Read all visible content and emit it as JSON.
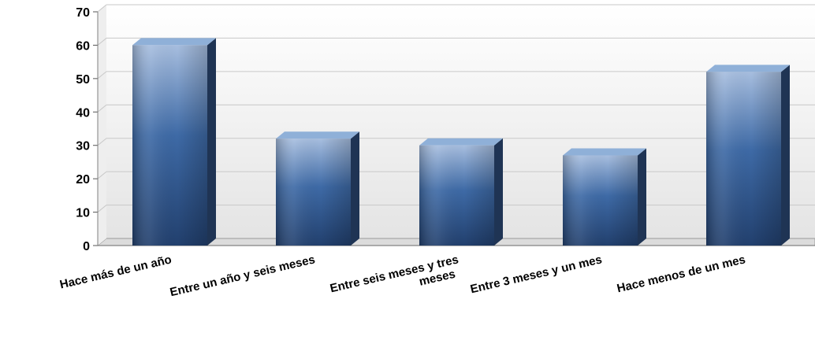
{
  "chart_data": {
    "type": "bar",
    "style": "3d-column",
    "title": "",
    "xlabel": "",
    "ylabel": "",
    "categories": [
      [
        "Hace más de un año"
      ],
      [
        "Entre un año y seis meses"
      ],
      [
        "Entre seis meses y tres",
        "meses"
      ],
      [
        "Entre 3 meses y un mes"
      ],
      [
        "Hace menos de un mes"
      ]
    ],
    "values": [
      60,
      32,
      30,
      27,
      52
    ],
    "ylim": [
      0,
      70
    ],
    "yticks": [
      0,
      10,
      20,
      30,
      40,
      50,
      60,
      70
    ],
    "grid": true,
    "legend": "none",
    "colors": {
      "bar_top": "#8fb0d8",
      "bar_front_light": "#a7bedf",
      "bar_front_mid": "#3e6aa6",
      "bar_front_dark": "#22406e",
      "bar_side": "#1f3454",
      "gridline": "#c8c8c8",
      "axis": "#808080",
      "plot_bg_top": "#ffffff",
      "plot_bg_bottom": "#e6e6e6"
    }
  }
}
